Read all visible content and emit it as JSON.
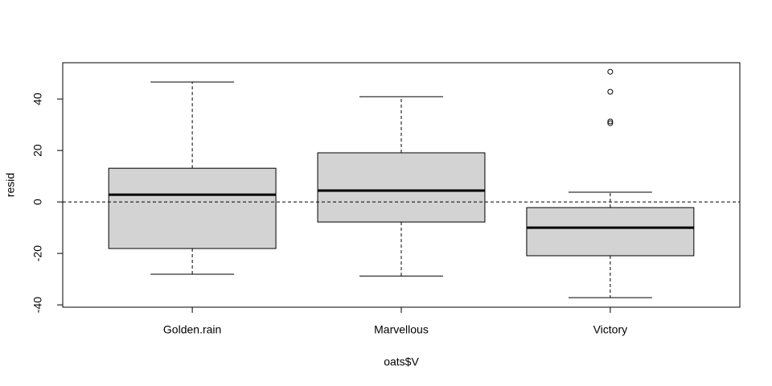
{
  "chart_data": {
    "type": "boxplot",
    "x_label": "oats$V",
    "y_label": "resid",
    "categories": [
      "Golden.rain",
      "Marvellous",
      "Victory"
    ],
    "boxes": [
      {
        "whisker_low": -28.1,
        "q1": -18.1,
        "median": 2.8,
        "q3": 13.1,
        "whisker_high": 46.6,
        "outliers": []
      },
      {
        "whisker_low": -28.8,
        "q1": -7.8,
        "median": 4.4,
        "q3": 19.1,
        "whisker_high": 40.9,
        "outliers": []
      },
      {
        "whisker_low": -37.2,
        "q1": -20.9,
        "median": -10.0,
        "q3": -2.2,
        "whisker_high": 3.8,
        "outliers": [
          50.6,
          42.8,
          31.3,
          30.6
        ]
      }
    ],
    "color": "#d3d3d3",
    "hline": 0,
    "ylim": [
      -40.9,
      54.1
    ],
    "yticks": [
      -40,
      -20,
      0,
      20,
      40
    ]
  }
}
